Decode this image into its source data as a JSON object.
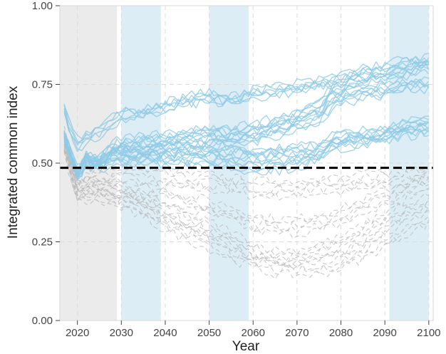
{
  "chart_data": {
    "type": "line",
    "xlabel": "Year",
    "ylabel": "Integrated common index",
    "xlim": [
      2016,
      2101
    ],
    "ylim": [
      0,
      1
    ],
    "x_ticks": [
      2020,
      2030,
      2040,
      2050,
      2060,
      2070,
      2080,
      2090,
      2100
    ],
    "y_ticks": [
      0,
      0.25,
      0.5,
      0.75,
      1
    ],
    "y_tick_labels": [
      "0.00",
      "0.25",
      "0.50",
      "0.75",
      "1.00"
    ],
    "grid": true,
    "threshold": {
      "value": 0.485,
      "style": "dashed",
      "color": "#000000"
    },
    "shaded_periods": [
      {
        "from": 2016,
        "to": 2029,
        "color": "#ebebeb"
      },
      {
        "from": 2030,
        "to": 2039,
        "color": "#dcedf5"
      },
      {
        "from": 2050,
        "to": 2059,
        "color": "#dcedf5"
      },
      {
        "from": 2091,
        "to": 2100,
        "color": "#dcedf5"
      }
    ],
    "series_groups": [
      {
        "group": "above-threshold",
        "color": "#8ecae6",
        "dashed": false,
        "representative_series": [
          {
            "x": [
              2017,
              2020,
              2022,
              2025,
              2028,
              2030,
              2035,
              2040,
              2045,
              2050,
              2055,
              2060,
              2065,
              2070,
              2075,
              2078,
              2080,
              2085,
              2090,
              2095,
              2100
            ],
            "y": [
              0.59,
              0.46,
              0.52,
              0.5,
              0.55,
              0.56,
              0.57,
              0.58,
              0.59,
              0.6,
              0.6,
              0.61,
              0.63,
              0.65,
              0.68,
              0.73,
              0.74,
              0.76,
              0.77,
              0.79,
              0.81
            ]
          },
          {
            "x": [
              2017,
              2020,
              2022,
              2025,
              2028,
              2030,
              2035,
              2040,
              2045,
              2050,
              2055,
              2060,
              2065,
              2070,
              2075,
              2078,
              2080,
              2085,
              2090,
              2095,
              2100
            ],
            "y": [
              0.58,
              0.47,
              0.51,
              0.5,
              0.54,
              0.55,
              0.55,
              0.56,
              0.56,
              0.57,
              0.57,
              0.58,
              0.6,
              0.62,
              0.64,
              0.69,
              0.7,
              0.72,
              0.73,
              0.75,
              0.75
            ]
          },
          {
            "x": [
              2017,
              2020,
              2022,
              2025,
              2028,
              2030,
              2035,
              2040,
              2045,
              2050,
              2055,
              2060,
              2065,
              2070,
              2075,
              2078,
              2080,
              2085,
              2090,
              2095,
              2100
            ],
            "y": [
              0.59,
              0.46,
              0.51,
              0.5,
              0.53,
              0.53,
              0.53,
              0.54,
              0.54,
              0.54,
              0.54,
              0.53,
              0.53,
              0.54,
              0.55,
              0.58,
              0.58,
              0.59,
              0.6,
              0.62,
              0.63
            ]
          },
          {
            "x": [
              2017,
              2020,
              2022,
              2025,
              2028,
              2030,
              2035,
              2040,
              2045,
              2050,
              2055,
              2060,
              2065,
              2070,
              2075,
              2078,
              2080,
              2085,
              2090,
              2095,
              2100
            ],
            "y": [
              0.58,
              0.47,
              0.5,
              0.49,
              0.51,
              0.51,
              0.51,
              0.51,
              0.51,
              0.51,
              0.5,
              0.49,
              0.49,
              0.5,
              0.52,
              0.55,
              0.56,
              0.57,
              0.58,
              0.6,
              0.61
            ]
          },
          {
            "x": [
              2017,
              2018,
              2020,
              2022,
              2025,
              2028,
              2030,
              2035,
              2040,
              2045,
              2050,
              2055,
              2060,
              2065,
              2070,
              2075,
              2080,
              2085,
              2090,
              2095,
              2100
            ],
            "y": [
              0.68,
              0.62,
              0.56,
              0.58,
              0.6,
              0.63,
              0.65,
              0.66,
              0.68,
              0.7,
              0.71,
              0.7,
              0.72,
              0.73,
              0.74,
              0.75,
              0.77,
              0.79,
              0.8,
              0.82,
              0.82
            ]
          }
        ]
      },
      {
        "group": "below-threshold",
        "color": "#b8b8b8",
        "dashed": true,
        "representative_series": [
          {
            "x": [
              2017,
              2020,
              2022,
              2025,
              2030,
              2035,
              2040,
              2045,
              2050,
              2055,
              2060,
              2065,
              2070,
              2075,
              2080,
              2085,
              2090,
              2095,
              2100
            ],
            "y": [
              0.58,
              0.44,
              0.45,
              0.46,
              0.47,
              0.46,
              0.45,
              0.44,
              0.44,
              0.43,
              0.42,
              0.42,
              0.42,
              0.43,
              0.43,
              0.44,
              0.45,
              0.46,
              0.47
            ]
          },
          {
            "x": [
              2017,
              2020,
              2022,
              2025,
              2030,
              2035,
              2040,
              2045,
              2050,
              2055,
              2060,
              2065,
              2070,
              2075,
              2080,
              2085,
              2090,
              2095,
              2100
            ],
            "y": [
              0.57,
              0.42,
              0.43,
              0.43,
              0.42,
              0.4,
              0.39,
              0.37,
              0.36,
              0.34,
              0.31,
              0.3,
              0.3,
              0.31,
              0.33,
              0.36,
              0.39,
              0.42,
              0.44
            ]
          },
          {
            "x": [
              2017,
              2020,
              2022,
              2025,
              2030,
              2035,
              2040,
              2045,
              2050,
              2055,
              2060,
              2065,
              2070,
              2075,
              2080,
              2085,
              2090,
              2095,
              2100
            ],
            "y": [
              0.56,
              0.41,
              0.42,
              0.42,
              0.4,
              0.37,
              0.34,
              0.31,
              0.29,
              0.26,
              0.22,
              0.2,
              0.2,
              0.22,
              0.24,
              0.28,
              0.32,
              0.36,
              0.39
            ]
          },
          {
            "x": [
              2017,
              2020,
              2022,
              2025,
              2030,
              2035,
              2040,
              2045,
              2050,
              2055,
              2060,
              2065,
              2070,
              2075,
              2080,
              2085,
              2090,
              2095,
              2100
            ],
            "y": [
              0.55,
              0.4,
              0.4,
              0.4,
              0.38,
              0.35,
              0.31,
              0.28,
              0.25,
              0.22,
              0.19,
              0.17,
              0.17,
              0.17,
              0.19,
              0.22,
              0.26,
              0.3,
              0.33
            ]
          }
        ]
      }
    ]
  }
}
